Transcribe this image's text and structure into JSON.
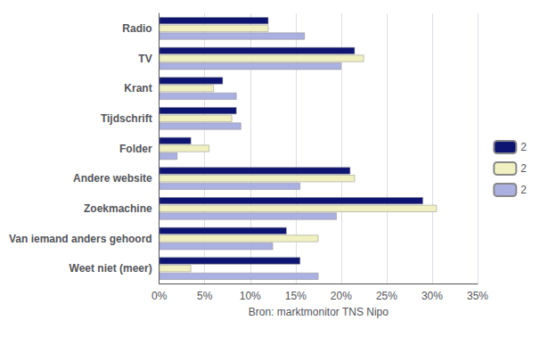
{
  "chart_data": {
    "type": "bar",
    "orientation": "horizontal",
    "categories": [
      "Radio",
      "TV",
      "Krant",
      "Tijdschrift",
      "Folder",
      "Andere website",
      "Zoekmachine",
      "Van iemand anders gehoord",
      "Weet niet (meer)"
    ],
    "series": [
      {
        "name": "2",
        "color": "#0d1472",
        "values": [
          12,
          21.5,
          7,
          8.5,
          3.5,
          21,
          29,
          14,
          15.5
        ]
      },
      {
        "name": "2",
        "color": "#f0f0c0",
        "values": [
          12,
          22.5,
          6,
          8,
          5.5,
          21.5,
          30.5,
          17.5,
          3.5
        ]
      },
      {
        "name": "2",
        "color": "#aab0e0",
        "values": [
          16,
          20,
          8.5,
          9,
          2,
          15.5,
          19.5,
          12.5,
          17.5
        ]
      }
    ],
    "xlabel": "Bron: marktmonitor TNS Nipo",
    "xlim": [
      0,
      35
    ],
    "xticks": [
      {
        "value": 0,
        "label": "0%"
      },
      {
        "value": 5,
        "label": "5%"
      },
      {
        "value": 10,
        "label": "10%"
      },
      {
        "value": 15,
        "label": "15%"
      },
      {
        "value": 20,
        "label": "20%"
      },
      {
        "value": 25,
        "label": "25%"
      },
      {
        "value": 30,
        "label": "30%"
      },
      {
        "value": 35,
        "label": "35%"
      }
    ],
    "grid": true,
    "legend": "right"
  }
}
